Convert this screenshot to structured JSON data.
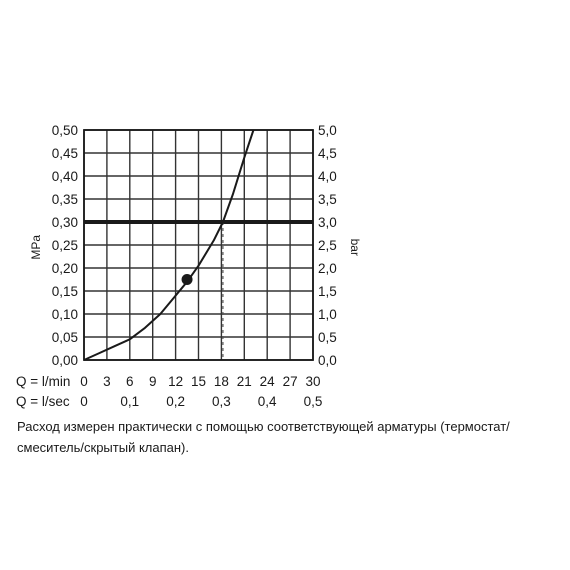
{
  "chart_data": {
    "type": "line",
    "y_left": {
      "label": "MPa",
      "range": [
        0,
        0.5
      ],
      "ticks": [
        "0,00",
        "0,05",
        "0,10",
        "0,15",
        "0,20",
        "0,25",
        "0,30",
        "0,35",
        "0,40",
        "0,45",
        "0,50"
      ]
    },
    "y_right": {
      "label": "bar",
      "range": [
        0,
        5.0
      ],
      "ticks": [
        "0,0",
        "0,5",
        "1,0",
        "1,5",
        "2,0",
        "2,5",
        "3,0",
        "3,5",
        "4,0",
        "4,5",
        "5,0"
      ]
    },
    "x_lmin": {
      "label": "Q = l/min",
      "range": [
        0,
        30
      ],
      "ticks": [
        "0",
        "3",
        "6",
        "9",
        "12",
        "15",
        "18",
        "21",
        "24",
        "27",
        "30"
      ]
    },
    "x_lsec": {
      "label": "Q = l/sec",
      "ticks": [
        {
          "value": 0,
          "label": "0"
        },
        {
          "value": 0.1,
          "label": "0,1"
        },
        {
          "value": 0.2,
          "label": "0,2"
        },
        {
          "value": 0.3,
          "label": "0,3"
        },
        {
          "value": 0.4,
          "label": "0,4"
        },
        {
          "value": 0.5,
          "label": "0,5"
        }
      ]
    },
    "grid": true,
    "series": [
      {
        "x": [
          0,
          2,
          4,
          6,
          8,
          10,
          12,
          13.5,
          15,
          17,
          18.2,
          19.5,
          21,
          22.2
        ],
        "y": [
          0.0,
          0.015,
          0.03,
          0.045,
          0.07,
          0.1,
          0.14,
          0.17,
          0.205,
          0.26,
          0.3,
          0.36,
          0.44,
          0.5
        ]
      }
    ],
    "highlight_point": {
      "x": 13.5,
      "y": 0.175
    },
    "reference_line": {
      "y": 0.3
    },
    "reference_drop": {
      "x": 18.2
    }
  },
  "caption": "Расход измерен практически с помощью соответствующей арматуры (термостат/смеситель/скрытый клапан).",
  "colors": {
    "ink": "#1a1a1a",
    "grid": "#333333",
    "dashed": "#555555"
  }
}
